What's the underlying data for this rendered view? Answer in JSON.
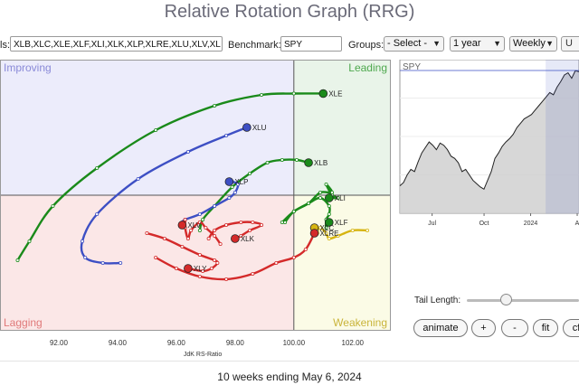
{
  "title": "Relative Rotation Graph (RRG)",
  "controls": {
    "symbols_label": "ls:",
    "symbols_value": "XLB,XLC,XLE,XLF,XLI,XLK,XLP,XLRE,XLU,XLV,XL",
    "benchmark_label": "Benchmark:",
    "benchmark_value": "SPY",
    "groups_label": "Groups:",
    "groups_value": "- Select -",
    "period_value": "1 year",
    "frequency_value": "Weekly",
    "update_button": "U"
  },
  "icons": {
    "dropdown": "chevron-down-icon"
  },
  "chart_data": [
    {
      "type": "scatter",
      "title": "",
      "xlabel": "JdK RS-Ratio",
      "ylabel": "",
      "xlim": [
        90.0,
        103.3
      ],
      "ylim": [
        95.0,
        105.0
      ],
      "x_ticks": [
        "92.00",
        "94.00",
        "96.00",
        "98.00",
        "100.00",
        "102.00"
      ],
      "quadrants": [
        "Improving",
        "Leading",
        "Lagging",
        "Weakening"
      ],
      "quadrant_colors": {
        "improving": "#ececfb",
        "leading": "#e9f4e9",
        "lagging": "#fbe7e7",
        "weakening": "#fbfbe6"
      },
      "series": [
        {
          "name": "XLE",
          "color": "#1a8a1a",
          "points": [
            [
              90.6,
              97.6
            ],
            [
              91.0,
              98.3
            ],
            [
              91.8,
              99.6
            ],
            [
              93.3,
              101.0
            ],
            [
              95.3,
              102.4
            ],
            [
              97.3,
              103.3
            ],
            [
              98.9,
              103.7
            ],
            [
              100.0,
              103.75
            ],
            [
              101.0,
              103.75
            ]
          ]
        },
        {
          "name": "XLU",
          "color": "#3d4fc4",
          "points": [
            [
              94.1,
              97.5
            ],
            [
              93.5,
              97.5
            ],
            [
              92.9,
              97.7
            ],
            [
              92.8,
              98.3
            ],
            [
              93.3,
              99.3
            ],
            [
              94.7,
              100.6
            ],
            [
              96.4,
              101.6
            ],
            [
              97.7,
              102.2
            ],
            [
              98.4,
              102.5
            ]
          ]
        },
        {
          "name": "XLB",
          "color": "#1a8a1a",
          "points": [
            [
              96.8,
              98.7
            ],
            [
              96.9,
              99.1
            ],
            [
              97.3,
              99.6
            ],
            [
              97.9,
              100.3
            ],
            [
              98.5,
              100.8
            ],
            [
              99.1,
              101.2
            ],
            [
              99.6,
              101.3
            ],
            [
              100.1,
              101.3
            ],
            [
              100.5,
              101.2
            ]
          ]
        },
        {
          "name": "XLI",
          "color": "#1a8a1a",
          "points": [
            [
              99.7,
              99.0
            ],
            [
              100.0,
              99.4
            ],
            [
              100.5,
              99.7
            ],
            [
              100.9,
              100.1
            ],
            [
              101.3,
              100.1
            ],
            [
              101.1,
              100.4
            ],
            [
              101.3,
              100.0
            ],
            [
              101.5,
              99.9
            ],
            [
              101.2,
              99.9
            ]
          ]
        },
        {
          "name": "XLF",
          "color": "#1a8a1a",
          "points": [
            [
              99.6,
              99.0
            ],
            [
              100.0,
              99.4
            ],
            [
              100.5,
              99.7
            ],
            [
              100.9,
              99.9
            ],
            [
              101.2,
              99.6
            ],
            [
              101.2,
              99.3
            ],
            [
              101.1,
              99.1
            ],
            [
              101.1,
              98.8
            ],
            [
              101.2,
              99.0
            ]
          ]
        },
        {
          "name": "XLP",
          "color": "#3d4fc4",
          "points": [
            [
              96.2,
              99.0
            ],
            [
              96.3,
              99.1
            ],
            [
              96.8,
              99.3
            ],
            [
              97.3,
              99.6
            ],
            [
              97.8,
              99.9
            ],
            [
              98.0,
              100.1
            ],
            [
              98.1,
              100.4
            ],
            [
              97.9,
              100.5
            ],
            [
              97.8,
              100.5
            ]
          ]
        },
        {
          "name": "XLC",
          "color": "#d6b410",
          "points": [
            [
              102.5,
              98.7
            ],
            [
              102.0,
              98.7
            ],
            [
              101.5,
              98.5
            ],
            [
              101.2,
              98.4
            ],
            [
              101.1,
              98.6
            ],
            [
              100.9,
              98.8
            ],
            [
              100.8,
              98.7
            ],
            [
              100.8,
              98.6
            ],
            [
              100.7,
              98.8
            ]
          ]
        },
        {
          "name": "XLRE",
          "color": "#d42a2a",
          "points": [
            [
              95.3,
              97.7
            ],
            [
              96.0,
              97.3
            ],
            [
              96.8,
              97.0
            ],
            [
              97.7,
              96.9
            ],
            [
              98.6,
              97.1
            ],
            [
              99.4,
              97.5
            ],
            [
              100.0,
              97.7
            ],
            [
              100.4,
              98.0
            ],
            [
              100.7,
              98.6
            ]
          ]
        },
        {
          "name": "XLK",
          "color": "#d42a2a",
          "points": [
            [
              97.1,
              98.4
            ],
            [
              97.3,
              98.7
            ],
            [
              97.7,
              98.9
            ],
            [
              98.2,
              99.0
            ],
            [
              98.6,
              99.0
            ],
            [
              98.9,
              98.9
            ],
            [
              98.5,
              98.7
            ],
            [
              98.2,
              98.5
            ],
            [
              98.0,
              98.4
            ]
          ]
        },
        {
          "name": "XLY",
          "color": "#d42a2a",
          "points": [
            [
              95.0,
              98.6
            ],
            [
              95.6,
              98.4
            ],
            [
              96.2,
              98.1
            ],
            [
              96.8,
              97.8
            ],
            [
              97.3,
              97.6
            ],
            [
              97.4,
              97.5
            ],
            [
              97.2,
              97.3
            ],
            [
              96.9,
              97.2
            ],
            [
              96.4,
              97.3
            ]
          ]
        },
        {
          "name": "XLV",
          "color": "#d42a2a",
          "points": [
            [
              97.5,
              98.2
            ],
            [
              97.3,
              98.5
            ],
            [
              97.0,
              98.8
            ],
            [
              96.8,
              99.0
            ],
            [
              96.5,
              98.7
            ],
            [
              96.4,
              98.4
            ],
            [
              96.3,
              98.8
            ],
            [
              96.3,
              99.1
            ],
            [
              96.2,
              98.9
            ]
          ]
        }
      ],
      "labels": [
        "XLE",
        "XLU",
        "XLB",
        "XLP",
        "XLI",
        "XLF",
        "XLC",
        "XLRE",
        "XLK",
        "XLY",
        "XLV"
      ]
    },
    {
      "type": "area",
      "title": "SPY",
      "x_ticks": [
        "Jul",
        "Oct",
        "2024",
        "A"
      ],
      "color": "#d0d0d0",
      "line_color": "#222222",
      "highlight_color": "#3d4fc4",
      "ylim": [
        390,
        530
      ],
      "values": [
        415,
        418,
        425,
        430,
        428,
        437,
        445,
        450,
        455,
        452,
        448,
        454,
        452,
        448,
        442,
        440,
        436,
        428,
        430,
        425,
        420,
        417,
        414,
        412,
        420,
        428,
        440,
        445,
        451,
        455,
        458,
        462,
        468,
        472,
        476,
        478,
        480,
        484,
        488,
        492,
        496,
        500,
        498,
        505,
        510,
        516,
        518,
        513,
        520,
        519
      ]
    }
  ],
  "tail": {
    "label": "Tail Length:",
    "value_fraction": 0.35
  },
  "buttons": {
    "animate": "animate",
    "plus": "+",
    "minus": "-",
    "fit": "fit",
    "cf": "cf"
  },
  "footer": "10 weeks ending May 6, 2024"
}
